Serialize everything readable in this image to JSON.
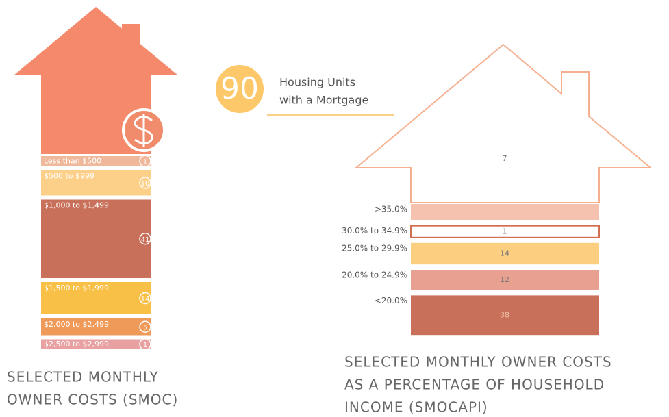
{
  "headline": {
    "value": 90,
    "text": [
      "Housing Units",
      "with a Mortgage"
    ]
  },
  "chart_data": [
    {
      "type": "bar",
      "title": [
        "SELECTED MONTHLY",
        "OWNER COSTS (SMOC)"
      ],
      "categories": [
        "Less than $500",
        "$500 to $999",
        "$1,000 to $1,499",
        "$1,500 to $1,999",
        "$2,000 to $2,499",
        "$2,500 to $2,999"
      ],
      "values": [
        1,
        10,
        41,
        14,
        5,
        1
      ],
      "colors": [
        "#f0b89a",
        "#fdd08a",
        "#c8705a",
        "#f9c048",
        "#f09a5a",
        "#e8a0a0"
      ]
    },
    {
      "type": "bar",
      "title": [
        "SELECTED MONTHLY OWNER COSTS",
        "AS A PERCENTAGE OF HOUSEHOLD",
        "INCOME (SMOCAPI)"
      ],
      "categories": [
        ">35.0%",
        "30.0% to 34.9%",
        "25.0% to 29.9%",
        "20.0% to 24.9%",
        "<20.0%"
      ],
      "values": [
        7,
        1,
        14,
        12,
        38
      ],
      "colors": [
        "#f5c2b0",
        "#ffffff",
        "#fccf80",
        "#e8a090",
        "#c8705a"
      ]
    }
  ]
}
